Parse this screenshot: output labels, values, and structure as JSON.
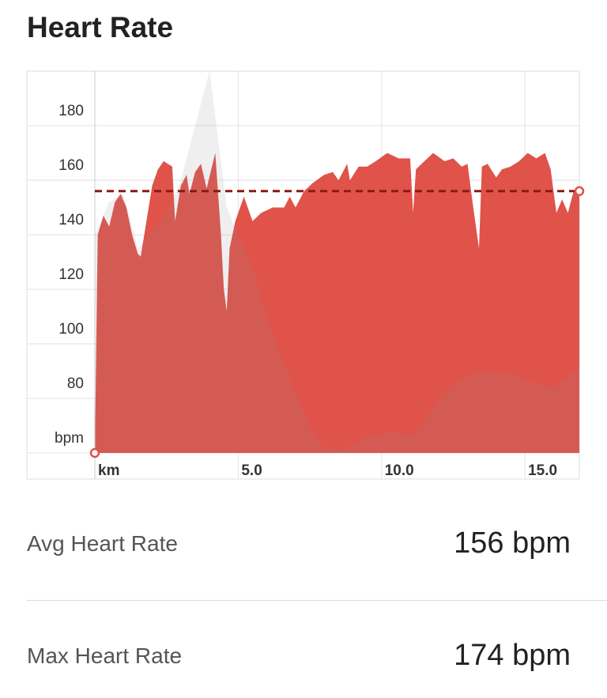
{
  "header": {
    "title": "Heart Rate"
  },
  "chart_data": {
    "type": "area",
    "x": [
      0,
      0.1,
      0.3,
      0.5,
      0.7,
      0.9,
      1.1,
      1.3,
      1.5,
      1.6,
      1.8,
      2.0,
      2.2,
      2.4,
      2.7,
      2.8,
      3.0,
      3.2,
      3.3,
      3.5,
      3.7,
      3.9,
      4.2,
      4.4,
      4.5,
      4.6,
      4.7,
      4.9,
      5.2,
      5.5,
      5.8,
      6.2,
      6.6,
      6.8,
      7.0,
      7.3,
      7.6,
      8.0,
      8.3,
      8.5,
      8.8,
      8.9,
      9.2,
      9.5,
      9.8,
      10.2,
      10.6,
      11.0,
      11.1,
      11.2,
      11.4,
      11.6,
      11.8,
      12.2,
      12.5,
      12.8,
      13.0,
      13.2,
      13.4,
      13.5,
      13.7,
      14.0,
      14.2,
      14.5,
      14.8,
      15.1,
      15.4,
      15.7,
      15.9,
      16.1,
      16.3,
      16.5,
      16.7,
      16.9
    ],
    "values": [
      60,
      140,
      147,
      143,
      152,
      155,
      150,
      140,
      133,
      132,
      145,
      158,
      164,
      167,
      165,
      145,
      158,
      162,
      155,
      163,
      166,
      157,
      170,
      140,
      120,
      112,
      135,
      145,
      154,
      145,
      148,
      150,
      150,
      154,
      150,
      156,
      159,
      162,
      163,
      160,
      166,
      160,
      165,
      165,
      167,
      170,
      168,
      168,
      148,
      164,
      166,
      168,
      170,
      167,
      168,
      165,
      166,
      150,
      135,
      165,
      166,
      161,
      164,
      165,
      167,
      170,
      168,
      170,
      164,
      148,
      153,
      148,
      156,
      156
    ],
    "color": "#e0534a",
    "elevation": {
      "x": [
        0,
        0.5,
        1,
        1.5,
        2,
        2.5,
        3,
        3.5,
        4.0,
        4.3,
        4.6,
        5.0,
        5.5,
        6,
        6.5,
        7,
        7.5,
        8,
        8.5,
        9,
        9.5,
        10,
        10.5,
        11,
        11.5,
        12,
        12.5,
        13,
        13.5,
        14,
        14.5,
        15,
        15.5,
        16,
        16.5,
        16.9
      ],
      "values": [
        140,
        152,
        155,
        135,
        142,
        148,
        160,
        180,
        200,
        175,
        150,
        140,
        128,
        110,
        95,
        82,
        70,
        62,
        61,
        63,
        66,
        67,
        68,
        66,
        72,
        80,
        85,
        88,
        90,
        89,
        89,
        87,
        85,
        84,
        88,
        91
      ],
      "color": "#8c8c8c"
    },
    "avg_line": 156,
    "avg_color": "#8b1a12",
    "xlim": [
      0,
      16.9
    ],
    "xticks": [
      {
        "value": 0,
        "label": "km"
      },
      {
        "value": 5,
        "label": "5.0"
      },
      {
        "value": 10,
        "label": "10.0"
      },
      {
        "value": 15,
        "label": "15.0"
      }
    ],
    "ylim": [
      60,
      200
    ],
    "yticks": [
      {
        "value": 60,
        "label": "bpm"
      },
      80,
      100,
      120,
      140,
      160,
      180
    ],
    "grid": true
  },
  "stats": [
    {
      "label": "Avg Heart Rate",
      "value": "156 bpm"
    },
    {
      "label": "Max Heart Rate",
      "value": "174 bpm"
    }
  ]
}
